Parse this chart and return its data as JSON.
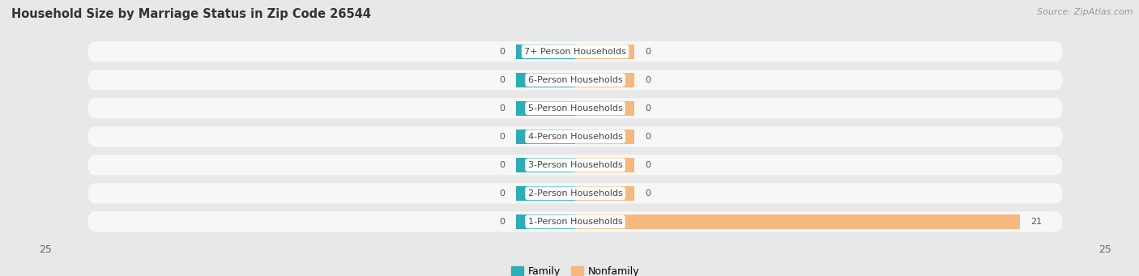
{
  "title": "Household Size by Marriage Status in Zip Code 26544",
  "source": "Source: ZipAtlas.com",
  "categories": [
    "7+ Person Households",
    "6-Person Households",
    "5-Person Households",
    "4-Person Households",
    "3-Person Households",
    "2-Person Households",
    "1-Person Households"
  ],
  "family_values": [
    0,
    0,
    0,
    0,
    0,
    0,
    0
  ],
  "nonfamily_values": [
    0,
    0,
    0,
    0,
    0,
    0,
    21
  ],
  "family_color": "#2eadb5",
  "nonfamily_color": "#f5b97f",
  "xlim": 25,
  "stub_size": 2.8,
  "bar_height": 0.52,
  "background_color": "#e8e8e8",
  "row_color": "#f7f7f7",
  "title_fontsize": 10.5,
  "source_fontsize": 8,
  "label_fontsize": 8,
  "value_fontsize": 8,
  "legend_fontsize": 9,
  "axis_tick_fontsize": 9
}
